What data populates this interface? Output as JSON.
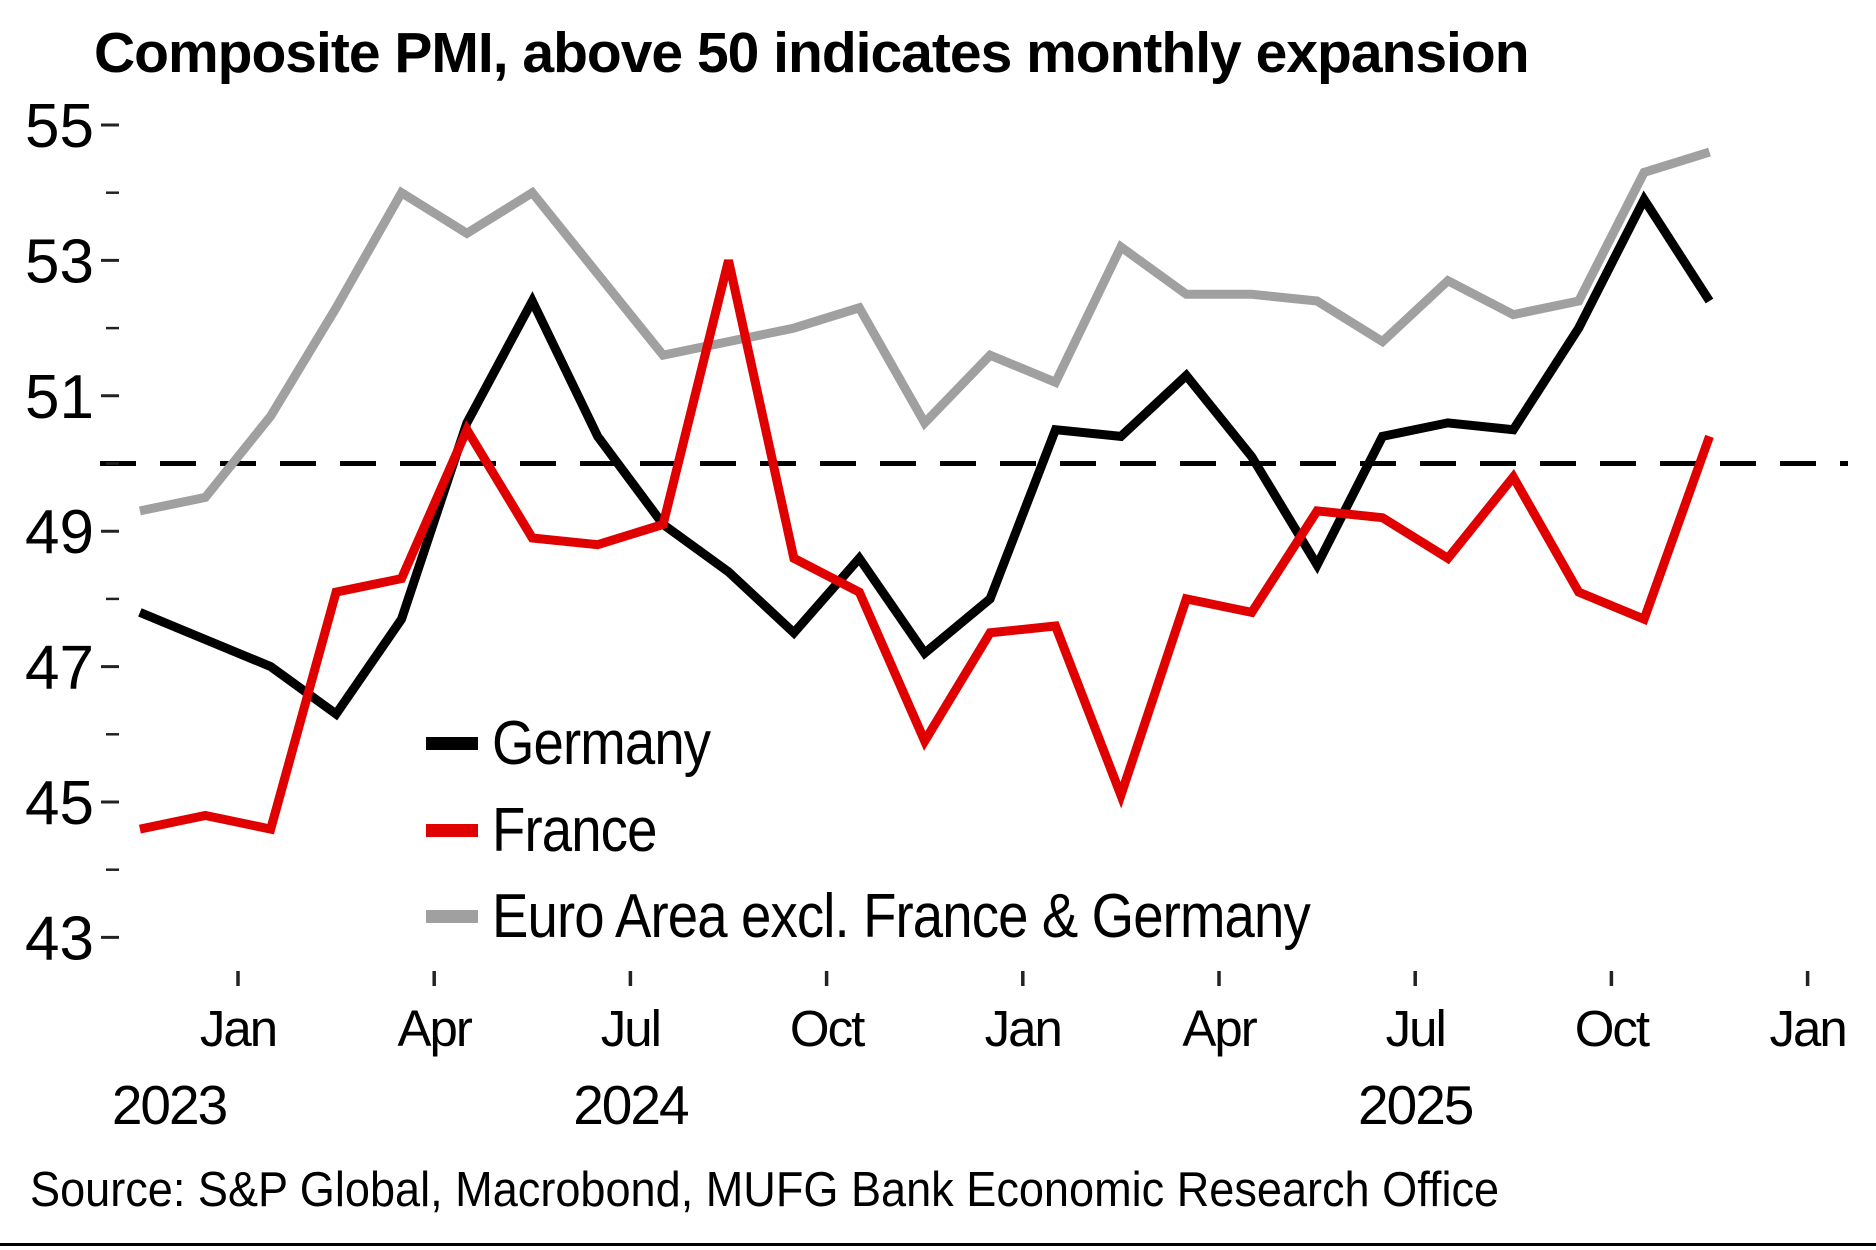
{
  "title": "Composite PMI, above 50 indicates monthly expansion",
  "source": "Source: S&P Global, Macrobond, MUFG Bank Economic Research Office",
  "colors": {
    "germany": "#000000",
    "france": "#e00000",
    "euro_area_excl": "#a0a0a0",
    "reference_line": "#000000",
    "tick": "#222222",
    "text": "#000000",
    "background": "#ffffff"
  },
  "legend": {
    "entries": [
      {
        "label": "Germany",
        "color": "#000000"
      },
      {
        "label": "France",
        "color": "#e00000"
      },
      {
        "label": "Euro Area excl. France & Germany",
        "color": "#a0a0a0"
      }
    ]
  },
  "chart_data": {
    "type": "line",
    "title": "Composite PMI, above 50 indicates monthly expansion",
    "x": [
      "Nov 2023",
      "Dec 2023",
      "Jan 2024",
      "Feb 2024",
      "Mar 2024",
      "Apr 2024",
      "May 2024",
      "Jun 2024",
      "Jul 2024",
      "Aug 2024",
      "Sep 2024",
      "Oct 2024",
      "Nov 2024",
      "Dec 2024",
      "Jan 2025",
      "Feb 2025",
      "Mar 2025",
      "Apr 2025",
      "May 2025",
      "Jun 2025",
      "Jul 2025",
      "Aug 2025",
      "Sep 2025",
      "Oct 2025",
      "Nov 2025"
    ],
    "series": [
      {
        "name": "Germany",
        "color": "#000000",
        "values": [
          47.8,
          47.4,
          47.0,
          46.3,
          47.7,
          50.6,
          52.4,
          50.4,
          49.1,
          48.4,
          47.5,
          48.6,
          47.2,
          48.0,
          50.5,
          50.4,
          51.3,
          50.1,
          48.5,
          50.4,
          50.6,
          50.5,
          52.0,
          53.9,
          52.4
        ]
      },
      {
        "name": "France",
        "color": "#e00000",
        "values": [
          44.6,
          44.8,
          44.6,
          48.1,
          48.3,
          50.5,
          48.9,
          48.8,
          49.1,
          53.0,
          48.6,
          48.1,
          45.9,
          47.5,
          47.6,
          45.1,
          48.0,
          47.8,
          49.3,
          49.2,
          48.6,
          49.8,
          48.1,
          47.7,
          50.4
        ]
      },
      {
        "name": "Euro Area excl. France & Germany",
        "color": "#a0a0a0",
        "values": [
          49.3,
          49.5,
          50.7,
          52.3,
          54.0,
          53.4,
          54.0,
          52.8,
          51.6,
          51.8,
          52.0,
          52.3,
          50.6,
          51.6,
          51.2,
          53.2,
          52.5,
          52.5,
          52.4,
          51.8,
          52.7,
          52.2,
          52.4,
          54.3,
          54.6
        ]
      }
    ],
    "ylim": [
      43,
      55
    ],
    "ylabel": "",
    "xlabel": "",
    "yticks_major": [
      55,
      53,
      51,
      49,
      47,
      45,
      43
    ],
    "yticks_minor": [
      54,
      52,
      50,
      48,
      46,
      44
    ],
    "reference_line": {
      "value": 50,
      "style": "dashed"
    },
    "xticks": [
      {
        "label": "Jan",
        "month_index": 2
      },
      {
        "label": "Apr",
        "month_index": 5
      },
      {
        "label": "Jul",
        "month_index": 8
      },
      {
        "label": "Oct",
        "month_index": 11
      },
      {
        "label": "Jan",
        "month_index": 14
      },
      {
        "label": "Apr",
        "month_index": 17
      },
      {
        "label": "Jul",
        "month_index": 20
      },
      {
        "label": "Oct",
        "month_index": 23
      },
      {
        "label": "Jan",
        "month_index": 26
      }
    ],
    "year_labels": [
      "2023",
      "2024",
      "2025"
    ],
    "grid": false,
    "legend_position": "inside-lower-left"
  }
}
